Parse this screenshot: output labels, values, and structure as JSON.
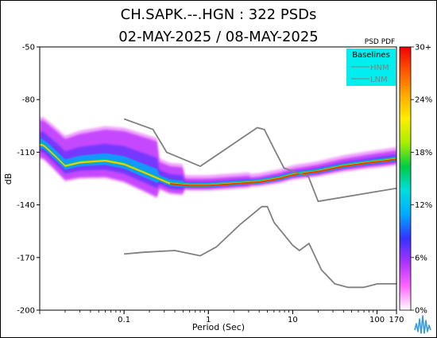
{
  "chart_data": {
    "type": "heatmap",
    "title_line1": "CH.SAPK.--.HGN : 322 PSDs",
    "title_line2": "02-MAY-2025 / 08-MAY-2025",
    "xlabel": "Period (Sec)",
    "ylabel": "dB",
    "x_scale": "log",
    "xlim": [
      0.01,
      170
    ],
    "ylim": [
      -200,
      -50
    ],
    "x_ticks": [
      {
        "value": 0.1,
        "label": "0.1"
      },
      {
        "value": 1,
        "label": "1"
      },
      {
        "value": 10,
        "label": "10"
      },
      {
        "value": 100,
        "label": "100"
      },
      {
        "value": 170,
        "label": "170"
      }
    ],
    "y_ticks": [
      {
        "value": -50,
        "label": "-50"
      },
      {
        "value": -80,
        "label": "-80"
      },
      {
        "value": -110,
        "label": "-110"
      },
      {
        "value": -140,
        "label": "-140"
      },
      {
        "value": -170,
        "label": "-170"
      },
      {
        "value": -200,
        "label": "-200"
      }
    ],
    "colorbar": {
      "title": "PSD PDF",
      "min": 0,
      "max": 30,
      "ticks": [
        {
          "value": 30,
          "label": "30+"
        },
        {
          "value": 24,
          "label": "24%"
        },
        {
          "value": 18,
          "label": "18%"
        },
        {
          "value": 12,
          "label": "12%"
        },
        {
          "value": 6,
          "label": "6%"
        },
        {
          "value": 0,
          "label": "0%"
        }
      ],
      "colors": [
        "#ffffff",
        "#ff66ff",
        "#aa33ff",
        "#3333ff",
        "#00aaff",
        "#00dddd",
        "#00cc44",
        "#aaee00",
        "#ffee00",
        "#ffaa00",
        "#ff5500",
        "#ee0000"
      ]
    },
    "legend": {
      "title": "Baselines",
      "items": [
        "HNM",
        "LNM"
      ],
      "background": "#00eeee",
      "placement": "top-right"
    },
    "baselines": {
      "color": "#808080",
      "HNM": [
        [
          0.1,
          -91
        ],
        [
          0.22,
          -97
        ],
        [
          0.32,
          -110
        ],
        [
          0.8,
          -118
        ],
        [
          3.8,
          -96
        ],
        [
          4.6,
          -97
        ],
        [
          6.3,
          -110
        ],
        [
          7.9,
          -119
        ],
        [
          15.4,
          -124
        ],
        [
          20,
          -138
        ],
        [
          354,
          -128
        ]
      ],
      "LNM": [
        [
          0.1,
          -168
        ],
        [
          0.17,
          -167
        ],
        [
          0.4,
          -166
        ],
        [
          0.8,
          -169
        ],
        [
          1.24,
          -164
        ],
        [
          2.4,
          -151
        ],
        [
          4.3,
          -141
        ],
        [
          5,
          -141
        ],
        [
          6,
          -150
        ],
        [
          10,
          -163
        ],
        [
          12,
          -166
        ],
        [
          15.6,
          -162
        ],
        [
          21.9,
          -177
        ],
        [
          31.6,
          -185
        ],
        [
          45,
          -187
        ],
        [
          70,
          -187
        ],
        [
          101,
          -185
        ],
        [
          154,
          -185
        ],
        [
          328,
          -185
        ]
      ]
    },
    "density_ridge": {
      "percentile_dB_at_period": [
        [
          0.011,
          -106
        ],
        [
          0.015,
          -112
        ],
        [
          0.02,
          -118
        ],
        [
          0.03,
          -116
        ],
        [
          0.06,
          -115
        ],
        [
          0.1,
          -117
        ],
        [
          0.2,
          -123
        ],
        [
          0.35,
          -128
        ],
        [
          0.6,
          -129
        ],
        [
          1,
          -129
        ],
        [
          2,
          -128
        ],
        [
          4,
          -127
        ],
        [
          7,
          -125
        ],
        [
          10,
          -123
        ],
        [
          20,
          -121
        ],
        [
          40,
          -118
        ],
        [
          80,
          -116
        ],
        [
          120,
          -115
        ],
        [
          170,
          -114
        ]
      ]
    },
    "grid": false
  }
}
